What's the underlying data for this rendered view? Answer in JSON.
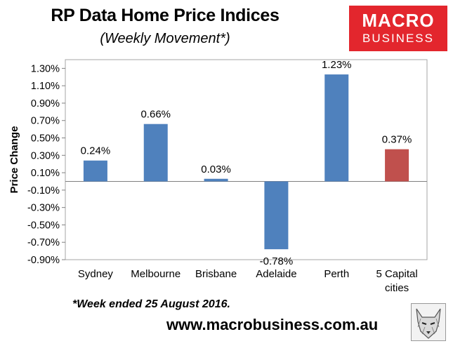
{
  "header": {
    "title": "RP Data Home Price Indices",
    "subtitle": "(Weekly Movement*)"
  },
  "logo": {
    "line1": "MACRO",
    "line2": "BUSINESS",
    "color": "#e3262d"
  },
  "footer": {
    "note": "*Week ended 25 August 2016.",
    "url": "www.macrobusiness.com.au",
    "mascot_icon": "wolf-head-icon"
  },
  "chart_data": {
    "type": "bar",
    "categories": [
      [
        "Sydney"
      ],
      [
        "Melbourne"
      ],
      [
        "Brisbane"
      ],
      [
        "Adelaide"
      ],
      [
        "Perth"
      ],
      [
        "5 Capital",
        "cities"
      ]
    ],
    "values": [
      0.24,
      0.66,
      0.03,
      -0.78,
      1.23,
      0.37
    ],
    "data_labels": [
      "0.24%",
      "0.66%",
      "0.03%",
      "-0.78%",
      "1.23%",
      "0.37%"
    ],
    "colors": [
      "#4f81bd",
      "#4f81bd",
      "#4f81bd",
      "#4f81bd",
      "#4f81bd",
      "#c0504d"
    ],
    "ylabel": "Price Change",
    "ylim": [
      -0.9,
      1.4
    ],
    "yticks": [
      1.3,
      1.1,
      0.9,
      0.7,
      0.5,
      0.3,
      0.1,
      -0.1,
      -0.3,
      -0.5,
      -0.7,
      -0.9
    ],
    "ytick_labels": [
      "1.30%",
      "1.10%",
      "0.90%",
      "0.70%",
      "0.50%",
      "0.30%",
      "0.10%",
      "-0.10%",
      "-0.30%",
      "-0.50%",
      "-0.70%",
      "-0.90%"
    ],
    "grid": false,
    "legend": "none"
  }
}
